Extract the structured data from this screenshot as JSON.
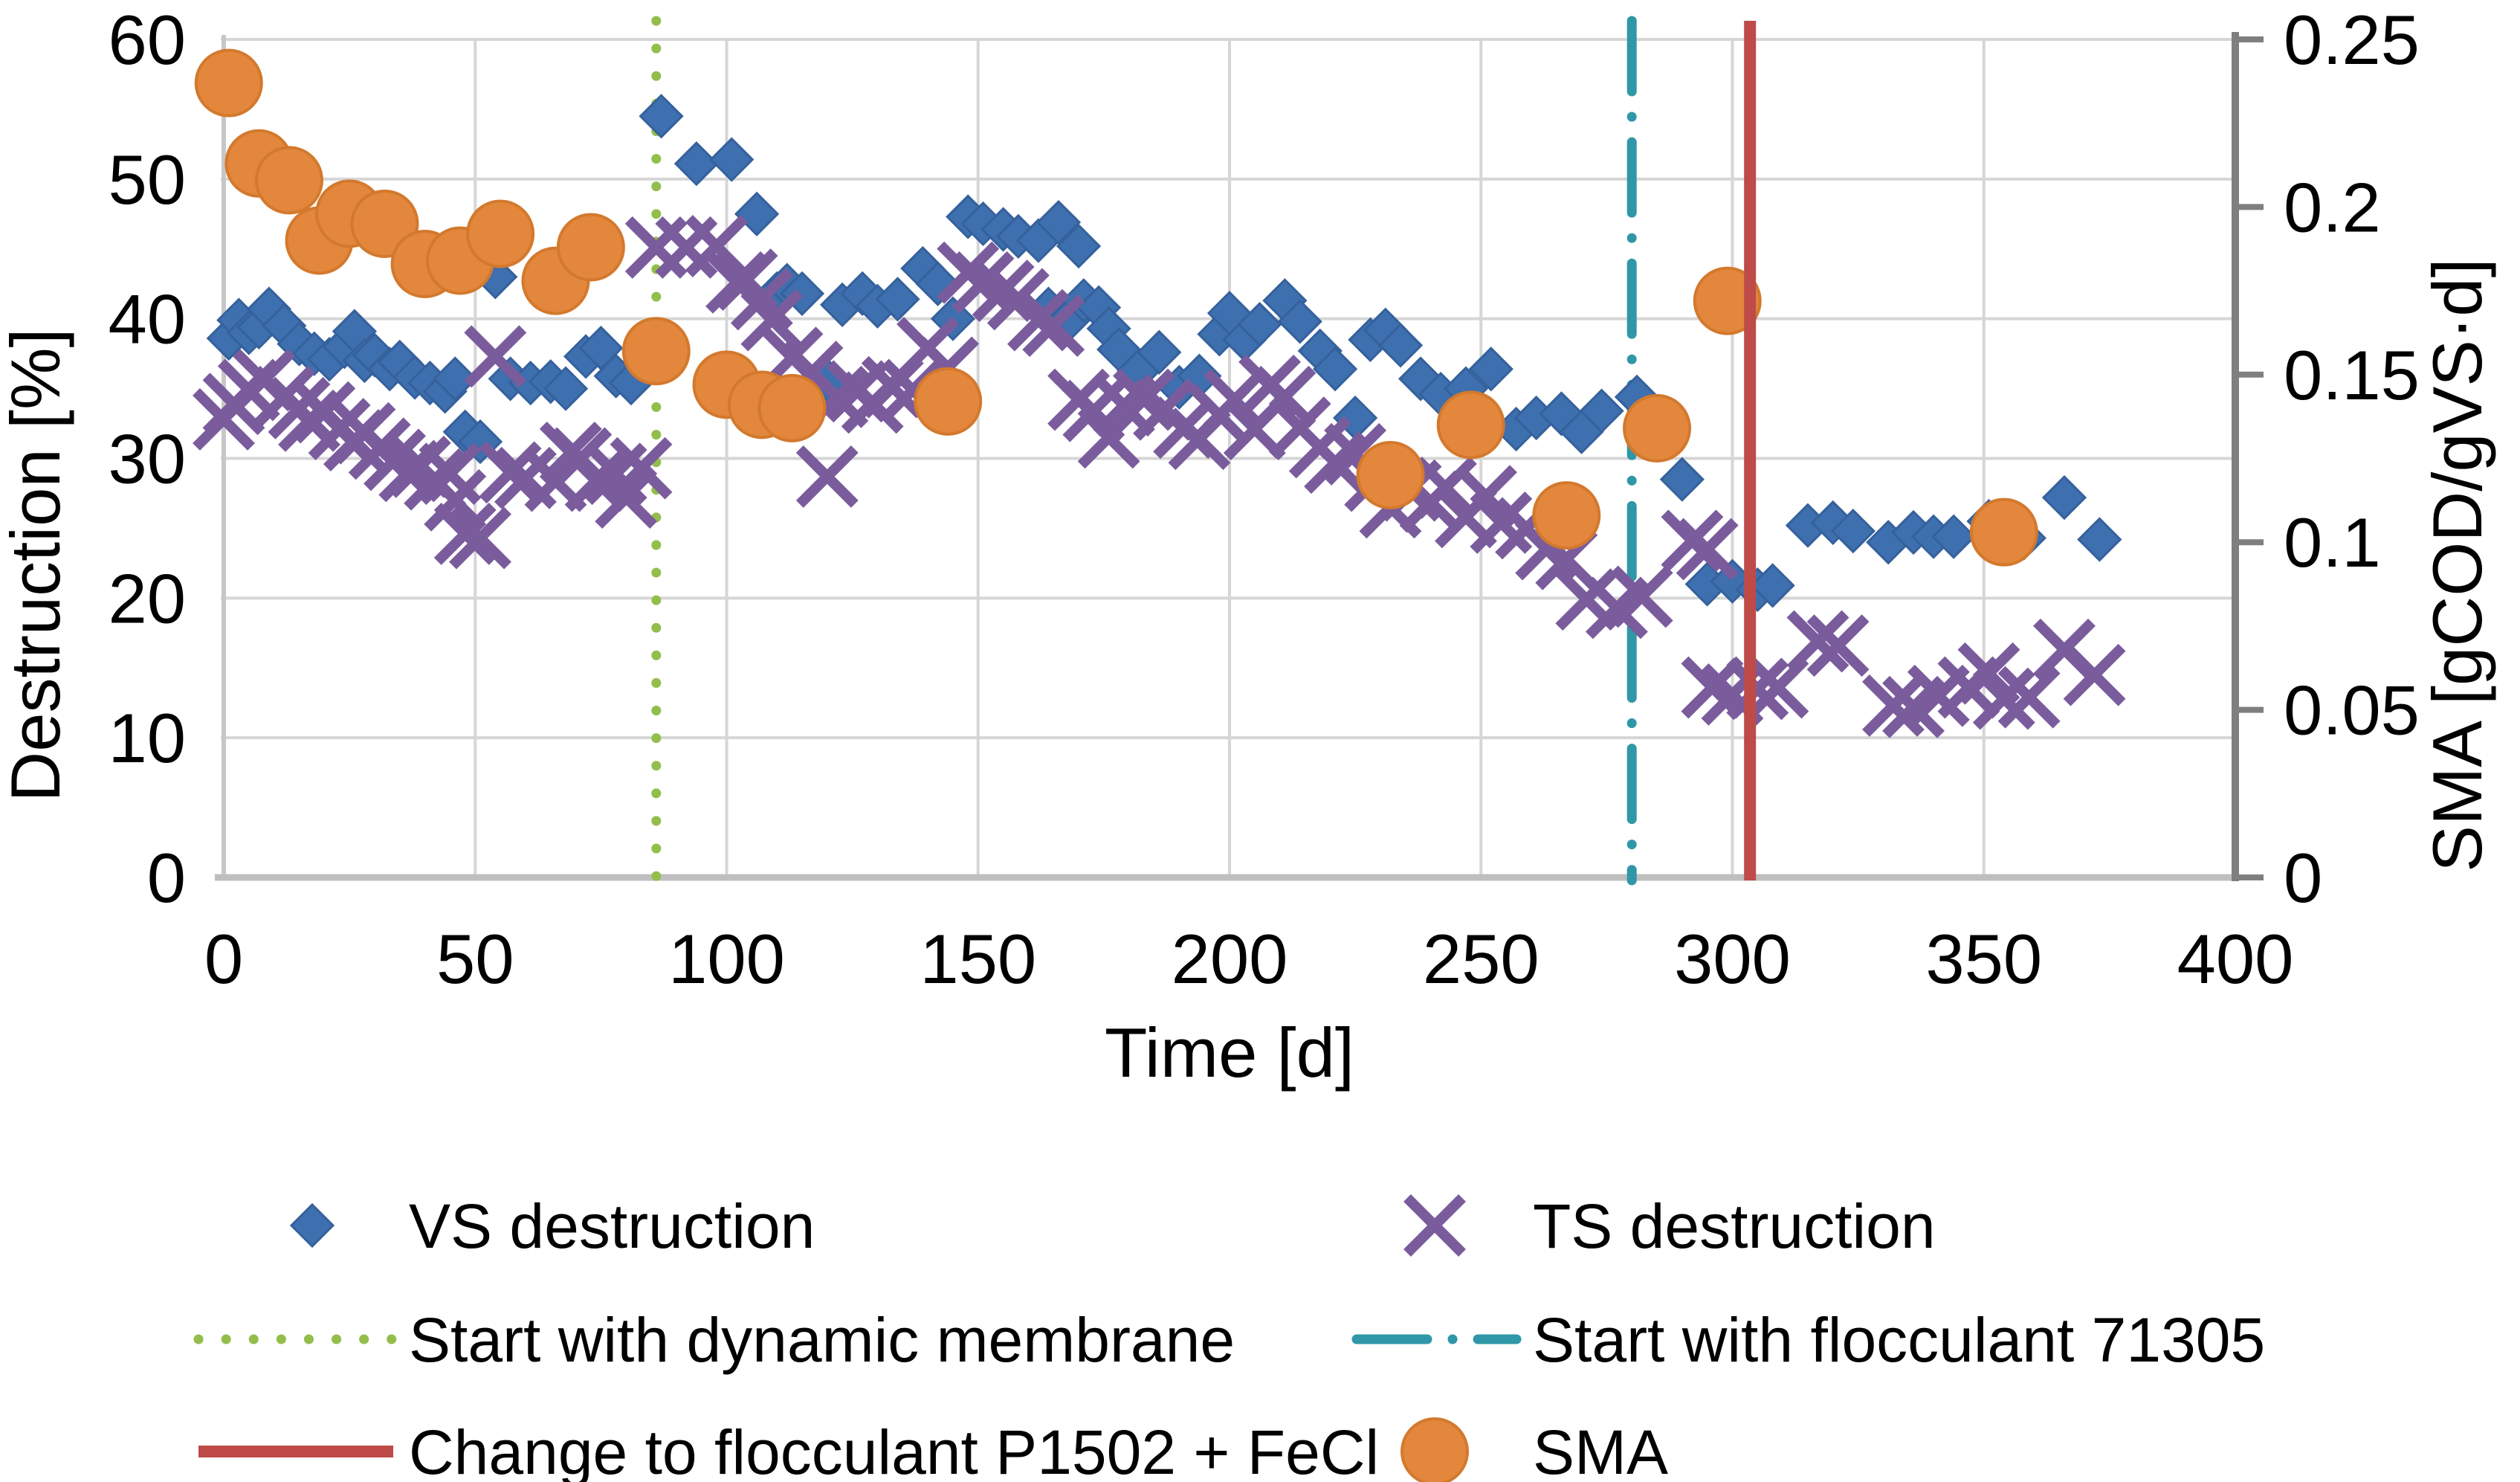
{
  "chart_data": {
    "type": "scatter",
    "title": "",
    "grid": true,
    "x_axis": {
      "label": "Time [d]",
      "min": 0,
      "max": 400,
      "tick_step": 50,
      "ticks": [
        0,
        50,
        100,
        150,
        200,
        250,
        300,
        350,
        400
      ]
    },
    "y_axis_left": {
      "label": "Destruction [%]",
      "min": 0,
      "max": 60,
      "tick_step": 10,
      "ticks": [
        0,
        10,
        20,
        30,
        40,
        50,
        60
      ]
    },
    "y_axis_right": {
      "label": "SMA [gCOD/gVS·d]",
      "min": 0,
      "max": 0.25,
      "tick_step": 0.05,
      "ticks": [
        0,
        0.05,
        0.1,
        0.15,
        0.2,
        0.25
      ],
      "tick_labels": [
        "0",
        "0.05",
        "0.1",
        "0.15",
        "0.2",
        "0.25"
      ]
    },
    "colors": {
      "vs": "#3E6FAE",
      "ts": "#7A5C9D",
      "sma": "#E2873B",
      "membrane_line": "#92BE4B",
      "flocculant_line": "#2F97A7",
      "change_line": "#BE4B48",
      "gridline": "#D6D6D6",
      "axis": "#BFBFBF",
      "right_axis": "#7F7F7F"
    },
    "series": [
      {
        "name": "VS destruction",
        "marker": "diamond",
        "color": "#3E6FAE",
        "y_axis": "left",
        "points": [
          [
            1,
            38.6
          ],
          [
            3,
            39.9
          ],
          [
            5,
            39.0
          ],
          [
            7,
            39.4
          ],
          [
            9,
            40.7
          ],
          [
            12,
            39.5
          ],
          [
            15,
            38.2
          ],
          [
            18,
            37.5
          ],
          [
            21,
            37.1
          ],
          [
            24,
            38.0
          ],
          [
            26,
            39.1
          ],
          [
            28,
            37.0
          ],
          [
            30,
            37.4
          ],
          [
            33,
            36.4
          ],
          [
            35,
            36.9
          ],
          [
            38,
            35.8
          ],
          [
            41,
            35.4
          ],
          [
            44,
            34.8
          ],
          [
            46,
            35.7
          ],
          [
            48,
            31.9
          ],
          [
            51,
            31.2
          ],
          [
            54,
            43.0
          ],
          [
            57,
            35.7
          ],
          [
            61,
            35.4
          ],
          [
            65,
            35.5
          ],
          [
            68,
            35.0
          ],
          [
            72,
            37.3
          ],
          [
            75,
            37.9
          ],
          [
            78,
            35.9
          ],
          [
            81,
            35.4
          ],
          [
            84,
            38.0
          ],
          [
            87,
            54.5
          ],
          [
            94,
            51.1
          ],
          [
            101,
            51.4
          ],
          [
            106,
            47.5
          ],
          [
            110,
            41.8
          ],
          [
            112,
            42.4
          ],
          [
            115,
            41.8
          ],
          [
            120,
            35.6
          ],
          [
            123,
            41.0
          ],
          [
            127,
            41.8
          ],
          [
            130,
            40.9
          ],
          [
            134,
            41.4
          ],
          [
            139,
            43.6
          ],
          [
            142,
            42.5
          ],
          [
            145,
            40.0
          ],
          [
            148,
            47.3
          ],
          [
            151,
            46.8
          ],
          [
            155,
            46.4
          ],
          [
            158,
            45.9
          ],
          [
            162,
            45.6
          ],
          [
            164,
            40.7
          ],
          [
            166,
            46.9
          ],
          [
            168,
            39.9
          ],
          [
            170,
            45.2
          ],
          [
            171,
            41.3
          ],
          [
            174,
            40.8
          ],
          [
            176,
            39.3
          ],
          [
            178,
            37.8
          ],
          [
            182,
            36.3
          ],
          [
            186,
            37.6
          ],
          [
            190,
            35.1
          ],
          [
            194,
            35.9
          ],
          [
            198,
            38.9
          ],
          [
            200,
            40.4
          ],
          [
            203,
            38.5
          ],
          [
            206,
            39.6
          ],
          [
            211,
            41.3
          ],
          [
            214,
            39.8
          ],
          [
            218,
            37.7
          ],
          [
            221,
            36.4
          ],
          [
            225,
            32.9
          ],
          [
            228,
            38.5
          ],
          [
            231,
            39.2
          ],
          [
            234,
            38.1
          ],
          [
            238,
            35.7
          ],
          [
            242,
            34.6
          ],
          [
            247,
            35.0
          ],
          [
            252,
            36.4
          ],
          [
            257,
            32.1
          ],
          [
            261,
            32.9
          ],
          [
            266,
            33.2
          ],
          [
            270,
            31.9
          ],
          [
            274,
            33.4
          ],
          [
            281,
            34.4
          ],
          [
            290,
            28.5
          ],
          [
            295,
            21.0
          ],
          [
            300,
            21.2
          ],
          [
            305,
            20.6
          ],
          [
            308,
            20.9
          ],
          [
            315,
            25.2
          ],
          [
            320,
            25.4
          ],
          [
            324,
            24.8
          ],
          [
            331,
            24.0
          ],
          [
            336,
            24.7
          ],
          [
            340,
            24.4
          ],
          [
            344,
            24.4
          ],
          [
            351,
            25.5
          ],
          [
            358,
            24.3
          ],
          [
            366,
            27.2
          ],
          [
            373,
            24.2
          ]
        ]
      },
      {
        "name": "TS destruction",
        "marker": "x-cross",
        "color": "#7A5C9D",
        "y_axis": "left",
        "points": [
          [
            0,
            32.8
          ],
          [
            2,
            33.9
          ],
          [
            5,
            34.9
          ],
          [
            8,
            35.6
          ],
          [
            12,
            34.4
          ],
          [
            15,
            33.6
          ],
          [
            17,
            32.7
          ],
          [
            20,
            33.3
          ],
          [
            23,
            32.1
          ],
          [
            26,
            31.3
          ],
          [
            28,
            31.8
          ],
          [
            31,
            30.7
          ],
          [
            34,
            29.9
          ],
          [
            37,
            29.1
          ],
          [
            39,
            29.4
          ],
          [
            42,
            28.5
          ],
          [
            45,
            28.9
          ],
          [
            46,
            27.0
          ],
          [
            48,
            24.6
          ],
          [
            51,
            24.3
          ],
          [
            54,
            37.3
          ],
          [
            57,
            29.0
          ],
          [
            60,
            28.6
          ],
          [
            66,
            28.4
          ],
          [
            69,
            30.4
          ],
          [
            71,
            30.0
          ],
          [
            74,
            28.4
          ],
          [
            78,
            28.9
          ],
          [
            80,
            27.2
          ],
          [
            83,
            29.3
          ],
          [
            86,
            45.1
          ],
          [
            92,
            45.1
          ],
          [
            98,
            45.2
          ],
          [
            102,
            42.6
          ],
          [
            104,
            42.8
          ],
          [
            107,
            41.4
          ],
          [
            109,
            39.9
          ],
          [
            113,
            37.2
          ],
          [
            117,
            36.2
          ],
          [
            120,
            28.7
          ],
          [
            122,
            34.4
          ],
          [
            126,
            34.8
          ],
          [
            129,
            34.0
          ],
          [
            133,
            35.1
          ],
          [
            137,
            34.9
          ],
          [
            140,
            37.9
          ],
          [
            144,
            36.5
          ],
          [
            148,
            43.3
          ],
          [
            151,
            42.6
          ],
          [
            155,
            42.0
          ],
          [
            158,
            41.4
          ],
          [
            162,
            39.9
          ],
          [
            165,
            39.5
          ],
          [
            170,
            34.2
          ],
          [
            173,
            33.4
          ],
          [
            176,
            31.5
          ],
          [
            179,
            33.8
          ],
          [
            183,
            34.2
          ],
          [
            187,
            33.5
          ],
          [
            191,
            32.2
          ],
          [
            194,
            31.4
          ],
          [
            198,
            33.1
          ],
          [
            201,
            34.2
          ],
          [
            205,
            32.1
          ],
          [
            208,
            35.2
          ],
          [
            211,
            34.4
          ],
          [
            214,
            32.2
          ],
          [
            218,
            30.8
          ],
          [
            221,
            29.7
          ],
          [
            225,
            30.3
          ],
          [
            229,
            28.4
          ],
          [
            232,
            26.5
          ],
          [
            236,
            27.7
          ],
          [
            240,
            26.9
          ],
          [
            243,
            27.9
          ],
          [
            247,
            25.8
          ],
          [
            251,
            27.3
          ],
          [
            254,
            25.4
          ],
          [
            259,
            25.0
          ],
          [
            263,
            23.5
          ],
          [
            267,
            22.8
          ],
          [
            271,
            19.9
          ],
          [
            277,
            19.3
          ],
          [
            282,
            20.1
          ],
          [
            292,
            24.1
          ],
          [
            295,
            23.5
          ],
          [
            296,
            13.6
          ],
          [
            300,
            13.1
          ],
          [
            305,
            13.5
          ],
          [
            309,
            13.6
          ],
          [
            317,
            16.9
          ],
          [
            321,
            16.6
          ],
          [
            332,
            12.3
          ],
          [
            336,
            12.2
          ],
          [
            341,
            13.0
          ],
          [
            347,
            13.6
          ],
          [
            351,
            14.6
          ],
          [
            354,
            12.8
          ],
          [
            359,
            12.9
          ],
          [
            366,
            16.3
          ],
          [
            372,
            14.5
          ]
        ]
      },
      {
        "name": "SMA",
        "marker": "circle",
        "color": "#E2873B",
        "y_axis": "right",
        "points": [
          [
            1,
            0.237
          ],
          [
            7,
            0.213
          ],
          [
            13,
            0.208
          ],
          [
            19,
            0.19
          ],
          [
            25,
            0.198
          ],
          [
            32,
            0.195
          ],
          [
            40,
            0.183
          ],
          [
            47,
            0.184
          ],
          [
            55,
            0.192
          ],
          [
            66,
            0.178
          ],
          [
            73,
            0.188
          ],
          [
            86,
            0.157
          ],
          [
            100,
            0.147
          ],
          [
            107,
            0.141
          ],
          [
            113,
            0.14
          ],
          [
            144,
            0.142
          ],
          [
            232,
            0.12
          ],
          [
            248,
            0.135
          ],
          [
            267,
            0.108
          ],
          [
            285,
            0.134
          ],
          [
            299,
            0.172
          ],
          [
            354,
            0.103
          ]
        ]
      }
    ],
    "vlines": [
      {
        "name": "Start with dynamic membrane",
        "x": 86,
        "color": "#92BE4B",
        "style": "dotted"
      },
      {
        "name": "Start with flocculant 71305",
        "x": 280,
        "color": "#2F97A7",
        "style": "dashdot"
      },
      {
        "name": "Change to flocculant P1502 + FeCl",
        "x": 303.5,
        "color": "#BE4B48",
        "style": "solid"
      }
    ],
    "legend": {
      "rows": [
        [
          {
            "label": "VS destruction",
            "swatch": "diamond",
            "color": "#3E6FAE"
          },
          {
            "label": "TS destruction",
            "swatch": "x-cross",
            "color": "#7A5C9D"
          }
        ],
        [
          {
            "label": "Start with dynamic membrane",
            "swatch": "dotted-line",
            "color": "#92BE4B"
          },
          {
            "label": "Start with flocculant 71305",
            "swatch": "dash-dot-line",
            "color": "#2F97A7"
          }
        ],
        [
          {
            "label": "Change to flocculant P1502 + FeCl",
            "swatch": "solid-line",
            "color": "#BE4B48"
          },
          {
            "label": "SMA",
            "swatch": "circle",
            "color": "#E2873B"
          }
        ]
      ]
    }
  }
}
